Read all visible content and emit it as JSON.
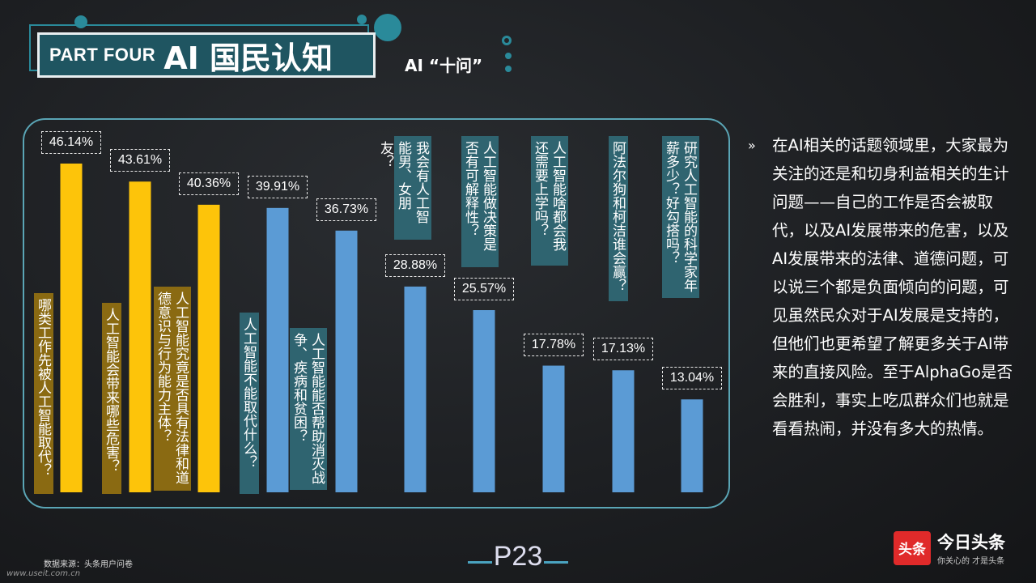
{
  "header": {
    "part_label": "PART FOUR",
    "title": "AI 国民认知",
    "subtitle": "AI “十问”"
  },
  "colors": {
    "gold": "#fdc40a",
    "blue": "#5b9bd5",
    "teal": "#2a8a9a"
  },
  "chart_data": {
    "type": "bar",
    "categories": [
      "哪类工作先被人工智能取代？",
      "人工智能会带来哪些危害？",
      "人工智能究竟是否具有法律和道德意识与行为能力主体？",
      "人工智能不能取代什么？",
      "人工智能能否帮助消灭战争、疾病和贫困？",
      "我会有人工智能男、女朋友？",
      "人工智能做决策是否有可解释性？",
      "人工智能啥都会我还需要上学吗？",
      "阿法尔狗和柯洁谁会赢？",
      "研究人工智能的科学家年薪多少？好勾搭吗？"
    ],
    "value_labels": [
      "46.14%",
      "43.61%",
      "40.36%",
      "39.91%",
      "36.73%",
      "28.88%",
      "25.57%",
      "17.78%",
      "17.13%",
      "13.04%"
    ],
    "values": [
      46.14,
      43.61,
      40.36,
      39.91,
      36.73,
      28.88,
      25.57,
      17.78,
      17.13,
      13.04
    ],
    "bar_colors": [
      "gold",
      "gold",
      "gold",
      "blue",
      "blue",
      "blue",
      "blue",
      "blue",
      "blue",
      "blue"
    ],
    "ylim": [
      0,
      46.14
    ]
  },
  "body_text": "在AI相关的话题领域里，大家最为关注的还是和切身利益相关的生计问题——自己的工作是否会被取代，以及AI发展带来的危害，以及AI发展带来的法律、道德问题，可以说三个都是负面倾向的问题，可见虽然民众对于AI发展是支持的，但他们也更希望了解更多关于AI带来的直接风险。至于AlphaGo是否会胜利，事实上吃瓜群众们也就是看看热闹，并没有多大的热情。",
  "bullet": "»",
  "footer": {
    "source": "数据来源：头条用户问卷",
    "watermark": "www.useit.com.cn",
    "page_number": "P23",
    "brand_logo": "头条",
    "brand_name": "今日头条",
    "brand_slogan": "你关心的 才是头条"
  }
}
